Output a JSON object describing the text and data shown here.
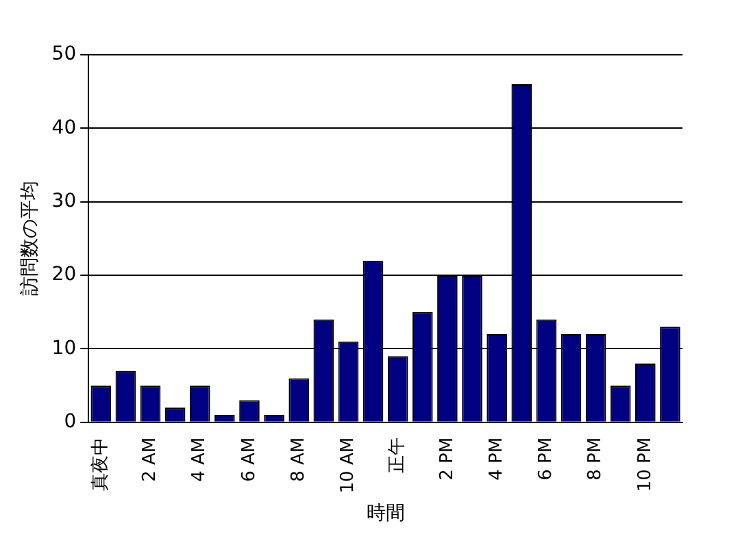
{
  "chart_data": {
    "type": "bar",
    "xlabel": "時間",
    "ylabel": "訪問数の平均",
    "categories": [
      "真夜中",
      null,
      "2 AM",
      null,
      "4 AM",
      null,
      "6 AM",
      null,
      "8 AM",
      null,
      "10 AM",
      null,
      "正午",
      null,
      "2 PM",
      null,
      "4 PM",
      null,
      "6 PM",
      null,
      "8 PM",
      null,
      "10 PM",
      null
    ],
    "values": [
      5,
      7,
      5,
      2,
      5,
      1,
      3,
      1,
      6,
      14,
      11,
      22,
      9,
      15,
      20,
      20,
      12,
      46,
      14,
      12,
      12,
      5,
      8,
      13
    ],
    "color": "#000080",
    "ylim": [
      0,
      50
    ],
    "yticks": [
      0,
      10,
      20,
      30,
      40,
      50
    ],
    "grid": "y",
    "legend": false
  }
}
